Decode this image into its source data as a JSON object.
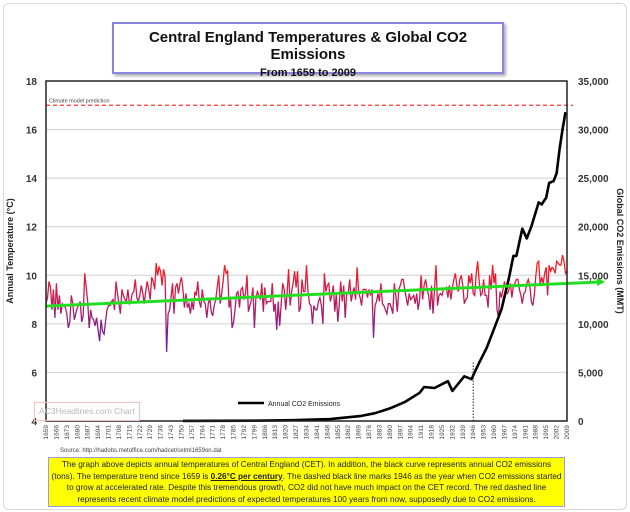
{
  "chart_data": {
    "type": "line",
    "title": "Central England Temperatures & Global CO2 Emissions",
    "subtitle": "From 1659 to 2009",
    "ylabel_left": "Annual Temperature (°C)",
    "ylabel_right": "Global CO2 Emissions (MMT)",
    "ylim_left": [
      4,
      18
    ],
    "ylim_right": [
      0,
      35000
    ],
    "yticks_left": [
      "4",
      "6",
      "8",
      "10",
      "12",
      "14",
      "16",
      "18"
    ],
    "yticks_right": [
      "0",
      "5,000",
      "10,000",
      "15,000",
      "20,000",
      "25,000",
      "30,000",
      "35,000"
    ],
    "xlim": [
      1659,
      2009
    ],
    "xticks": [
      "1659",
      "1666",
      "1673",
      "1680",
      "1687",
      "1694",
      "1701",
      "1708",
      "1715",
      "1722",
      "1729",
      "1736",
      "1743",
      "1750",
      "1757",
      "1764",
      "1771",
      "1778",
      "1785",
      "1792",
      "1799",
      "1806",
      "1813",
      "1820",
      "1827",
      "1834",
      "1841",
      "1848",
      "1855",
      "1862",
      "1869",
      "1876",
      "1883",
      "1890",
      "1897",
      "1904",
      "1911",
      "1918",
      "1925",
      "1932",
      "1939",
      "1946",
      "1953",
      "1960",
      "1967",
      "1974",
      "1981",
      "1988",
      "1995",
      "2002",
      "2009"
    ],
    "grid": true,
    "colors": {
      "temp_high": "#ff1a1a",
      "temp_low": "#6a1fa8",
      "co2": "#000000",
      "trend": "#22dd22",
      "prediction": "#ff3333"
    },
    "temperature": {
      "start_year": 1659,
      "values": [
        8.83,
        9.08,
        9.75,
        9.5,
        8.58,
        9.42,
        8.25,
        9.67,
        8.58,
        9.17,
        8.42,
        8.83,
        8.75,
        8.67,
        8.42,
        7.83,
        8.08,
        9.17,
        8.83,
        8.17,
        8.42,
        8.67,
        8.75,
        8.92,
        8.08,
        8.33,
        10.08,
        9.5,
        8.92,
        7.83,
        8.58,
        8.25,
        8.17,
        7.92,
        8.25,
        7.75,
        7.29,
        8.17,
        7.67,
        7.58,
        8.08,
        8.58,
        8.75,
        8.75,
        8.92,
        9.0,
        8.58,
        9.75,
        9.25,
        8.83,
        8.42,
        9.42,
        9.17,
        9.0,
        8.92,
        9.42,
        8.83,
        8.92,
        9.25,
        9.33,
        9.83,
        9.08,
        8.92,
        9.17,
        9.58,
        9.25,
        8.83,
        9.33,
        9.75,
        9.42,
        9.0,
        9.92,
        9.75,
        9.42,
        10.5,
        10.0,
        10.33,
        10.17,
        9.58,
        10.25,
        9.92,
        6.84,
        8.42,
        8.58,
        9.08,
        9.67,
        8.42,
        9.5,
        9.67,
        9.25,
        9.67,
        9.92,
        9.42,
        8.67,
        9.25,
        8.67,
        8.83,
        8.42,
        8.92,
        8.58,
        9.33,
        9.17,
        9.75,
        8.92,
        8.67,
        9.42,
        8.92,
        8.83,
        8.25,
        8.83,
        9.08,
        8.5,
        8.33,
        8.75,
        9.0,
        9.5,
        10.0,
        8.83,
        9.25,
        9.75,
        10.42,
        10.08,
        10.17,
        8.67,
        9.0,
        7.83,
        8.08,
        8.58,
        9.25,
        9.33,
        8.67,
        9.42,
        9.5,
        9.0,
        9.25,
        10.0,
        8.5,
        8.75,
        9.0,
        9.5,
        7.83,
        9.08,
        9.33,
        9.17,
        9.0,
        9.67,
        8.5,
        9.5,
        8.83,
        8.92,
        8.92,
        8.92,
        9.67,
        8.5,
        8.83,
        7.75,
        8.92,
        7.92,
        8.83,
        9.67,
        9.42,
        8.58,
        9.25,
        10.25,
        8.75,
        9.33,
        9.67,
        10.17,
        9.5,
        10.17,
        8.5,
        8.67,
        9.83,
        9.33,
        9.33,
        10.42,
        9.33,
        8.83,
        8.75,
        8.0,
        8.75,
        8.58,
        8.58,
        8.92,
        9.08,
        8.75,
        8.0,
        10.08,
        9.33,
        9.58,
        9.67,
        8.92,
        9.17,
        9.58,
        8.5,
        9.25,
        8.08,
        8.75,
        9.75,
        8.92,
        9.58,
        8.25,
        9.25,
        9.25,
        9.83,
        8.92,
        9.25,
        9.5,
        9.0,
        10.33,
        9.33,
        9.08,
        8.75,
        9.42,
        9.42,
        9.42,
        9.08,
        9.42,
        9.17,
        9.42,
        7.42,
        8.75,
        8.92,
        9.25,
        8.92,
        9.67,
        8.83,
        8.75,
        8.58,
        8.42,
        8.83,
        8.83,
        8.67,
        8.42,
        9.67,
        9.17,
        8.5,
        9.42,
        9.58,
        9.83,
        9.83,
        9.42,
        9.08,
        8.75,
        9.25,
        9.0,
        9.08,
        9.17,
        8.83,
        9.25,
        8.58,
        9.0,
        10.0,
        9.0,
        9.58,
        9.83,
        9.42,
        9.17,
        8.58,
        9.58,
        8.42,
        9.42,
        10.42,
        8.75,
        9.17,
        9.25,
        9.17,
        9.42,
        9.42,
        9.5,
        9.08,
        9.58,
        9.0,
        9.5,
        9.83,
        10.08,
        9.58,
        9.33,
        9.83,
        10.0,
        9.58,
        8.83,
        9.0,
        9.08,
        10.0,
        9.67,
        10.08,
        9.25,
        9.17,
        10.08,
        10.58,
        9.75,
        9.17,
        9.25,
        9.83,
        9.17,
        9.17,
        8.67,
        10.0,
        9.42,
        10.42,
        9.67,
        10.08,
        8.58,
        8.25,
        9.33,
        9.08,
        9.42,
        9.75,
        9.33,
        9.25,
        9.42,
        9.67,
        9.08,
        9.58,
        9.67,
        9.83,
        9.83,
        9.42,
        9.17,
        8.83,
        9.25,
        9.33,
        9.67,
        9.83,
        9.58,
        8.92,
        8.75,
        9.17,
        9.92,
        10.5,
        10.58,
        9.58,
        9.92,
        9.67,
        10.08,
        10.33,
        9.17,
        10.42,
        10.17,
        10.33,
        10.25,
        10.08,
        10.58,
        10.5,
        10.42,
        10.42,
        10.83,
        10.58,
        10.08,
        10.17
      ]
    },
    "co2": {
      "name": "Annual CO2 Emissions",
      "points": [
        [
          1751,
          10
        ],
        [
          1775,
          20
        ],
        [
          1800,
          30
        ],
        [
          1825,
          80
        ],
        [
          1850,
          200
        ],
        [
          1870,
          500
        ],
        [
          1880,
          800
        ],
        [
          1890,
          1300
        ],
        [
          1900,
          1950
        ],
        [
          1910,
          2900
        ],
        [
          1913,
          3500
        ],
        [
          1920,
          3400
        ],
        [
          1929,
          4100
        ],
        [
          1932,
          3100
        ],
        [
          1940,
          4600
        ],
        [
          1945,
          4300
        ],
        [
          1946,
          4700
        ],
        [
          1950,
          6000
        ],
        [
          1955,
          7500
        ],
        [
          1960,
          9500
        ],
        [
          1965,
          11500
        ],
        [
          1970,
          14700
        ],
        [
          1973,
          17000
        ],
        [
          1975,
          17000
        ],
        [
          1979,
          19800
        ],
        [
          1982,
          18800
        ],
        [
          1985,
          20000
        ],
        [
          1990,
          22500
        ],
        [
          1992,
          22300
        ],
        [
          1995,
          23000
        ],
        [
          1997,
          24500
        ],
        [
          2000,
          24700
        ],
        [
          2002,
          25500
        ],
        [
          2004,
          28000
        ],
        [
          2006,
          30000
        ],
        [
          2008,
          31800
        ]
      ]
    },
    "trend": {
      "rate_per_century": 0.26,
      "start": [
        1659,
        8.73
      ],
      "end": [
        2009,
        9.64
      ]
    },
    "prediction": {
      "label": "Climate model prediction",
      "value": 17
    },
    "marker_year": 1946
  },
  "source": "Source: http://hadobs.metoffice.com/hadcet/cetml1659on.dat",
  "watermark": "AC3Headlines.com Chart",
  "note": {
    "before": "The graph above depicts annual temperatures of Central England (CET). In addition, the black curve represents annual CO2 emissions (tons). The temperature trend since 1659 is ",
    "highlight": "0.26°C per century",
    "after": ". The dashed black line marks 1946 as the year when CO2 emissions started to grow at accelerated rate. Despite this tremendous growth, CO2 did not have much impact on the CET record. The red dashed line represents recent climate model predictions of expected temperatures 100 years from now, supposedly due to CO2 emissions."
  }
}
